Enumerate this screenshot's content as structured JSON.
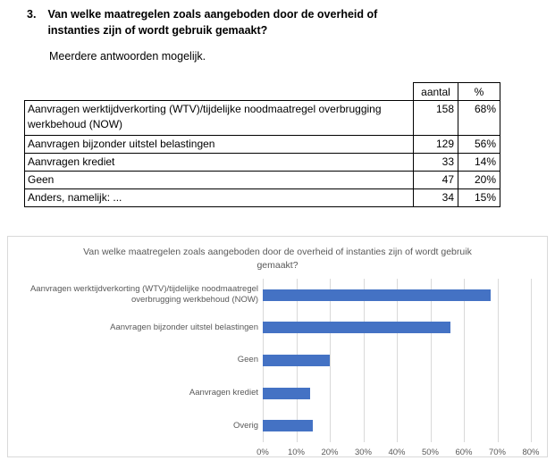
{
  "question": {
    "number": "3.",
    "text": "Van welke maatregelen zoals aangeboden door de overheid of instanties zijn of wordt gebruik gemaakt?",
    "note": "Meerdere antwoorden mogelijk."
  },
  "table": {
    "headers": [
      "aantal",
      "%"
    ],
    "rows": [
      {
        "label": "Aanvragen werktijdverkorting (WTV)/tijdelijke noodmaatregel overbrugging werkbehoud (NOW)",
        "aantal": "158",
        "pct": "68%"
      },
      {
        "label": "Aanvragen bijzonder uitstel belastingen",
        "aantal": "129",
        "pct": "56%"
      },
      {
        "label": "Aanvragen krediet",
        "aantal": "33",
        "pct": "14%"
      },
      {
        "label": "Geen",
        "aantal": "47",
        "pct": "20%"
      },
      {
        "label": "Anders, namelijk: ...",
        "aantal": "34",
        "pct": "15%"
      }
    ]
  },
  "chart_data": {
    "type": "bar",
    "orientation": "horizontal",
    "title": "Van welke maatregelen zoals aangeboden door de overheid of instanties zijn of wordt gebruik gemaakt?",
    "categories": [
      "Aanvragen werktijdverkorting (WTV)/tijdelijke noodmaatregel overbrugging werkbehoud (NOW)",
      "Aanvragen bijzonder uitstel belastingen",
      "Geen",
      "Aanvragen krediet",
      "Overig"
    ],
    "values": [
      68,
      56,
      20,
      14,
      15
    ],
    "unit": "%",
    "xlim": [
      0,
      80
    ],
    "x_ticks": [
      "0%",
      "10%",
      "20%",
      "30%",
      "40%",
      "50%",
      "60%",
      "70%",
      "80%"
    ],
    "grid": true,
    "legend": false
  },
  "colors": {
    "bar": "#4472C4",
    "gridline": "#D9D9D9",
    "chart_border": "#D9D9D9",
    "chart_text": "#595959",
    "table_border": "#000000"
  }
}
